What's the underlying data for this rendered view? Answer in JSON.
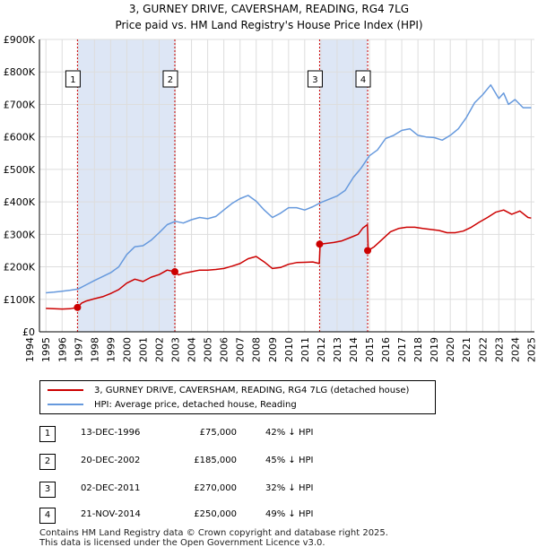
{
  "title_line1": "3, GURNEY DRIVE, CAVERSHAM, READING, RG4 7LG",
  "title_line2": "Price paid vs. HM Land Registry's House Price Index (HPI)",
  "colors": {
    "property": "#cc0000",
    "hpi": "#6699dd",
    "shade": "#dde6f5",
    "grid": "#dddddd"
  },
  "chart_data": {
    "type": "line",
    "xlim": [
      1994.6,
      2025.2
    ],
    "ylim": [
      0,
      900000
    ],
    "x_ticks": [
      1994,
      1995,
      1996,
      1997,
      1998,
      1999,
      2000,
      2001,
      2002,
      2003,
      2004,
      2005,
      2006,
      2007,
      2008,
      2009,
      2010,
      2011,
      2012,
      2013,
      2014,
      2015,
      2016,
      2017,
      2018,
      2019,
      2020,
      2021,
      2022,
      2023,
      2024,
      2025
    ],
    "y_ticks": [
      0,
      100000,
      200000,
      300000,
      400000,
      500000,
      600000,
      700000,
      800000,
      900000
    ],
    "y_tick_labels": [
      "£0",
      "£100K",
      "£200K",
      "£300K",
      "£400K",
      "£500K",
      "£600K",
      "£700K",
      "£800K",
      "£900K"
    ],
    "shaded_ranges": [
      [
        1996.95,
        2002.97
      ],
      [
        2011.92,
        2014.89
      ]
    ],
    "series": [
      {
        "name": "3, GURNEY DRIVE, CAVERSHAM, READING, RG4 7LG (detached house)",
        "color": "#cc0000",
        "x": [
          1995.0,
          1995.5,
          1996.0,
          1996.5,
          1996.95,
          1997.2,
          1997.5,
          1998.0,
          1998.5,
          1999.0,
          1999.5,
          2000.0,
          2000.5,
          2001.0,
          2001.5,
          2002.0,
          2002.5,
          2002.97,
          2003.2,
          2003.5,
          2004.0,
          2004.5,
          2005.0,
          2005.5,
          2006.0,
          2006.5,
          2007.0,
          2007.5,
          2008.0,
          2008.5,
          2009.0,
          2009.5,
          2010.0,
          2010.5,
          2011.0,
          2011.5,
          2011.9,
          2011.95,
          2012.3,
          2012.8,
          2013.3,
          2013.8,
          2014.3,
          2014.6,
          2014.88,
          2014.92,
          2015.3,
          2015.8,
          2016.3,
          2016.8,
          2017.3,
          2017.8,
          2018.3,
          2018.8,
          2019.3,
          2019.8,
          2020.3,
          2020.8,
          2021.3,
          2021.8,
          2022.3,
          2022.8,
          2023.3,
          2023.8,
          2024.3,
          2024.8,
          2025.0
        ],
        "values": [
          72000,
          71000,
          70000,
          71000,
          75000,
          88000,
          95000,
          102000,
          108000,
          118000,
          130000,
          150000,
          162000,
          155000,
          168000,
          176000,
          190000,
          185000,
          175000,
          180000,
          185000,
          190000,
          190000,
          192000,
          195000,
          202000,
          210000,
          225000,
          232000,
          215000,
          195000,
          198000,
          208000,
          213000,
          214000,
          215000,
          210000,
          270000,
          272000,
          275000,
          280000,
          290000,
          300000,
          320000,
          330000,
          250000,
          262000,
          285000,
          308000,
          318000,
          322000,
          322000,
          318000,
          315000,
          312000,
          305000,
          305000,
          310000,
          322000,
          338000,
          352000,
          368000,
          375000,
          362000,
          372000,
          352000,
          350000
        ]
      },
      {
        "name": "HPI: Average price, detached house, Reading",
        "color": "#6699dd",
        "x": [
          1995.0,
          1995.5,
          1996.0,
          1996.5,
          1997.0,
          1997.5,
          1998.0,
          1998.5,
          1999.0,
          1999.5,
          2000.0,
          2000.5,
          2001.0,
          2001.5,
          2002.0,
          2002.5,
          2003.0,
          2003.5,
          2004.0,
          2004.5,
          2005.0,
          2005.5,
          2006.0,
          2006.5,
          2007.0,
          2007.5,
          2008.0,
          2008.5,
          2009.0,
          2009.5,
          2010.0,
          2010.5,
          2011.0,
          2011.5,
          2012.0,
          2012.5,
          2013.0,
          2013.5,
          2014.0,
          2014.5,
          2015.0,
          2015.5,
          2016.0,
          2016.5,
          2017.0,
          2017.5,
          2018.0,
          2018.5,
          2019.0,
          2019.5,
          2020.0,
          2020.5,
          2021.0,
          2021.5,
          2022.0,
          2022.5,
          2023.0,
          2023.3,
          2023.6,
          2024.0,
          2024.5,
          2025.0
        ],
        "values": [
          120000,
          122000,
          125000,
          128000,
          132000,
          145000,
          158000,
          170000,
          182000,
          200000,
          238000,
          262000,
          265000,
          282000,
          305000,
          330000,
          340000,
          335000,
          345000,
          352000,
          348000,
          355000,
          375000,
          395000,
          410000,
          420000,
          402000,
          375000,
          352000,
          365000,
          382000,
          382000,
          375000,
          385000,
          398000,
          408000,
          418000,
          435000,
          475000,
          505000,
          542000,
          560000,
          595000,
          605000,
          620000,
          625000,
          605000,
          600000,
          598000,
          590000,
          605000,
          625000,
          660000,
          705000,
          730000,
          760000,
          718000,
          735000,
          700000,
          715000,
          690000,
          690000
        ]
      }
    ],
    "markers": [
      {
        "label": "1",
        "x": 1996.95,
        "y": 75000
      },
      {
        "label": "2",
        "x": 2002.97,
        "y": 185000
      },
      {
        "label": "3",
        "x": 2011.92,
        "y": 270000
      },
      {
        "label": "4",
        "x": 2014.89,
        "y": 250000
      }
    ]
  },
  "legend": {
    "property_label": "3, GURNEY DRIVE, CAVERSHAM, READING, RG4 7LG (detached house)",
    "hpi_label": "HPI: Average price, detached house, Reading"
  },
  "transactions": [
    {
      "num": "1",
      "date": "13-DEC-1996",
      "price": "£75,000",
      "hpi": "42% ↓ HPI"
    },
    {
      "num": "2",
      "date": "20-DEC-2002",
      "price": "£185,000",
      "hpi": "45% ↓ HPI"
    },
    {
      "num": "3",
      "date": "02-DEC-2011",
      "price": "£270,000",
      "hpi": "32% ↓ HPI"
    },
    {
      "num": "4",
      "date": "21-NOV-2014",
      "price": "£250,000",
      "hpi": "49% ↓ HPI"
    }
  ],
  "footer_line1": "Contains HM Land Registry data © Crown copyright and database right 2025.",
  "footer_line2": "This data is licensed under the Open Government Licence v3.0."
}
